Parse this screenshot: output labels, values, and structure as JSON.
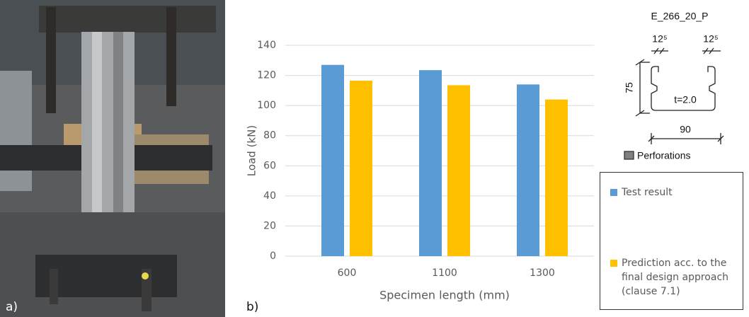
{
  "chart_data": {
    "type": "bar",
    "categories": [
      "600",
      "1100",
      "1300"
    ],
    "series": [
      {
        "name": "Test result",
        "color": "#5b9bd5",
        "values": [
          127,
          123.5,
          114
        ]
      },
      {
        "name": "Prediction acc. to the final design approach (clause 7.1)",
        "color": "#ffc000",
        "values": [
          116.5,
          113.5,
          104
        ]
      }
    ],
    "x_label": "Specimen length (mm)",
    "y_label": "Load (kN)",
    "ylim": [
      0,
      140
    ],
    "yticks": [
      0,
      20,
      40,
      60,
      80,
      100,
      120,
      140
    ],
    "grid": true,
    "legend": "right"
  },
  "panel_labels": [
    "a)",
    "b)"
  ],
  "cross_section": {
    "title": "E_266_20_P",
    "lip_left": "12⁵",
    "lip_right": "12⁵",
    "height": "75",
    "thickness": "t=2.0",
    "width": "90",
    "perforations": "Perforations"
  }
}
